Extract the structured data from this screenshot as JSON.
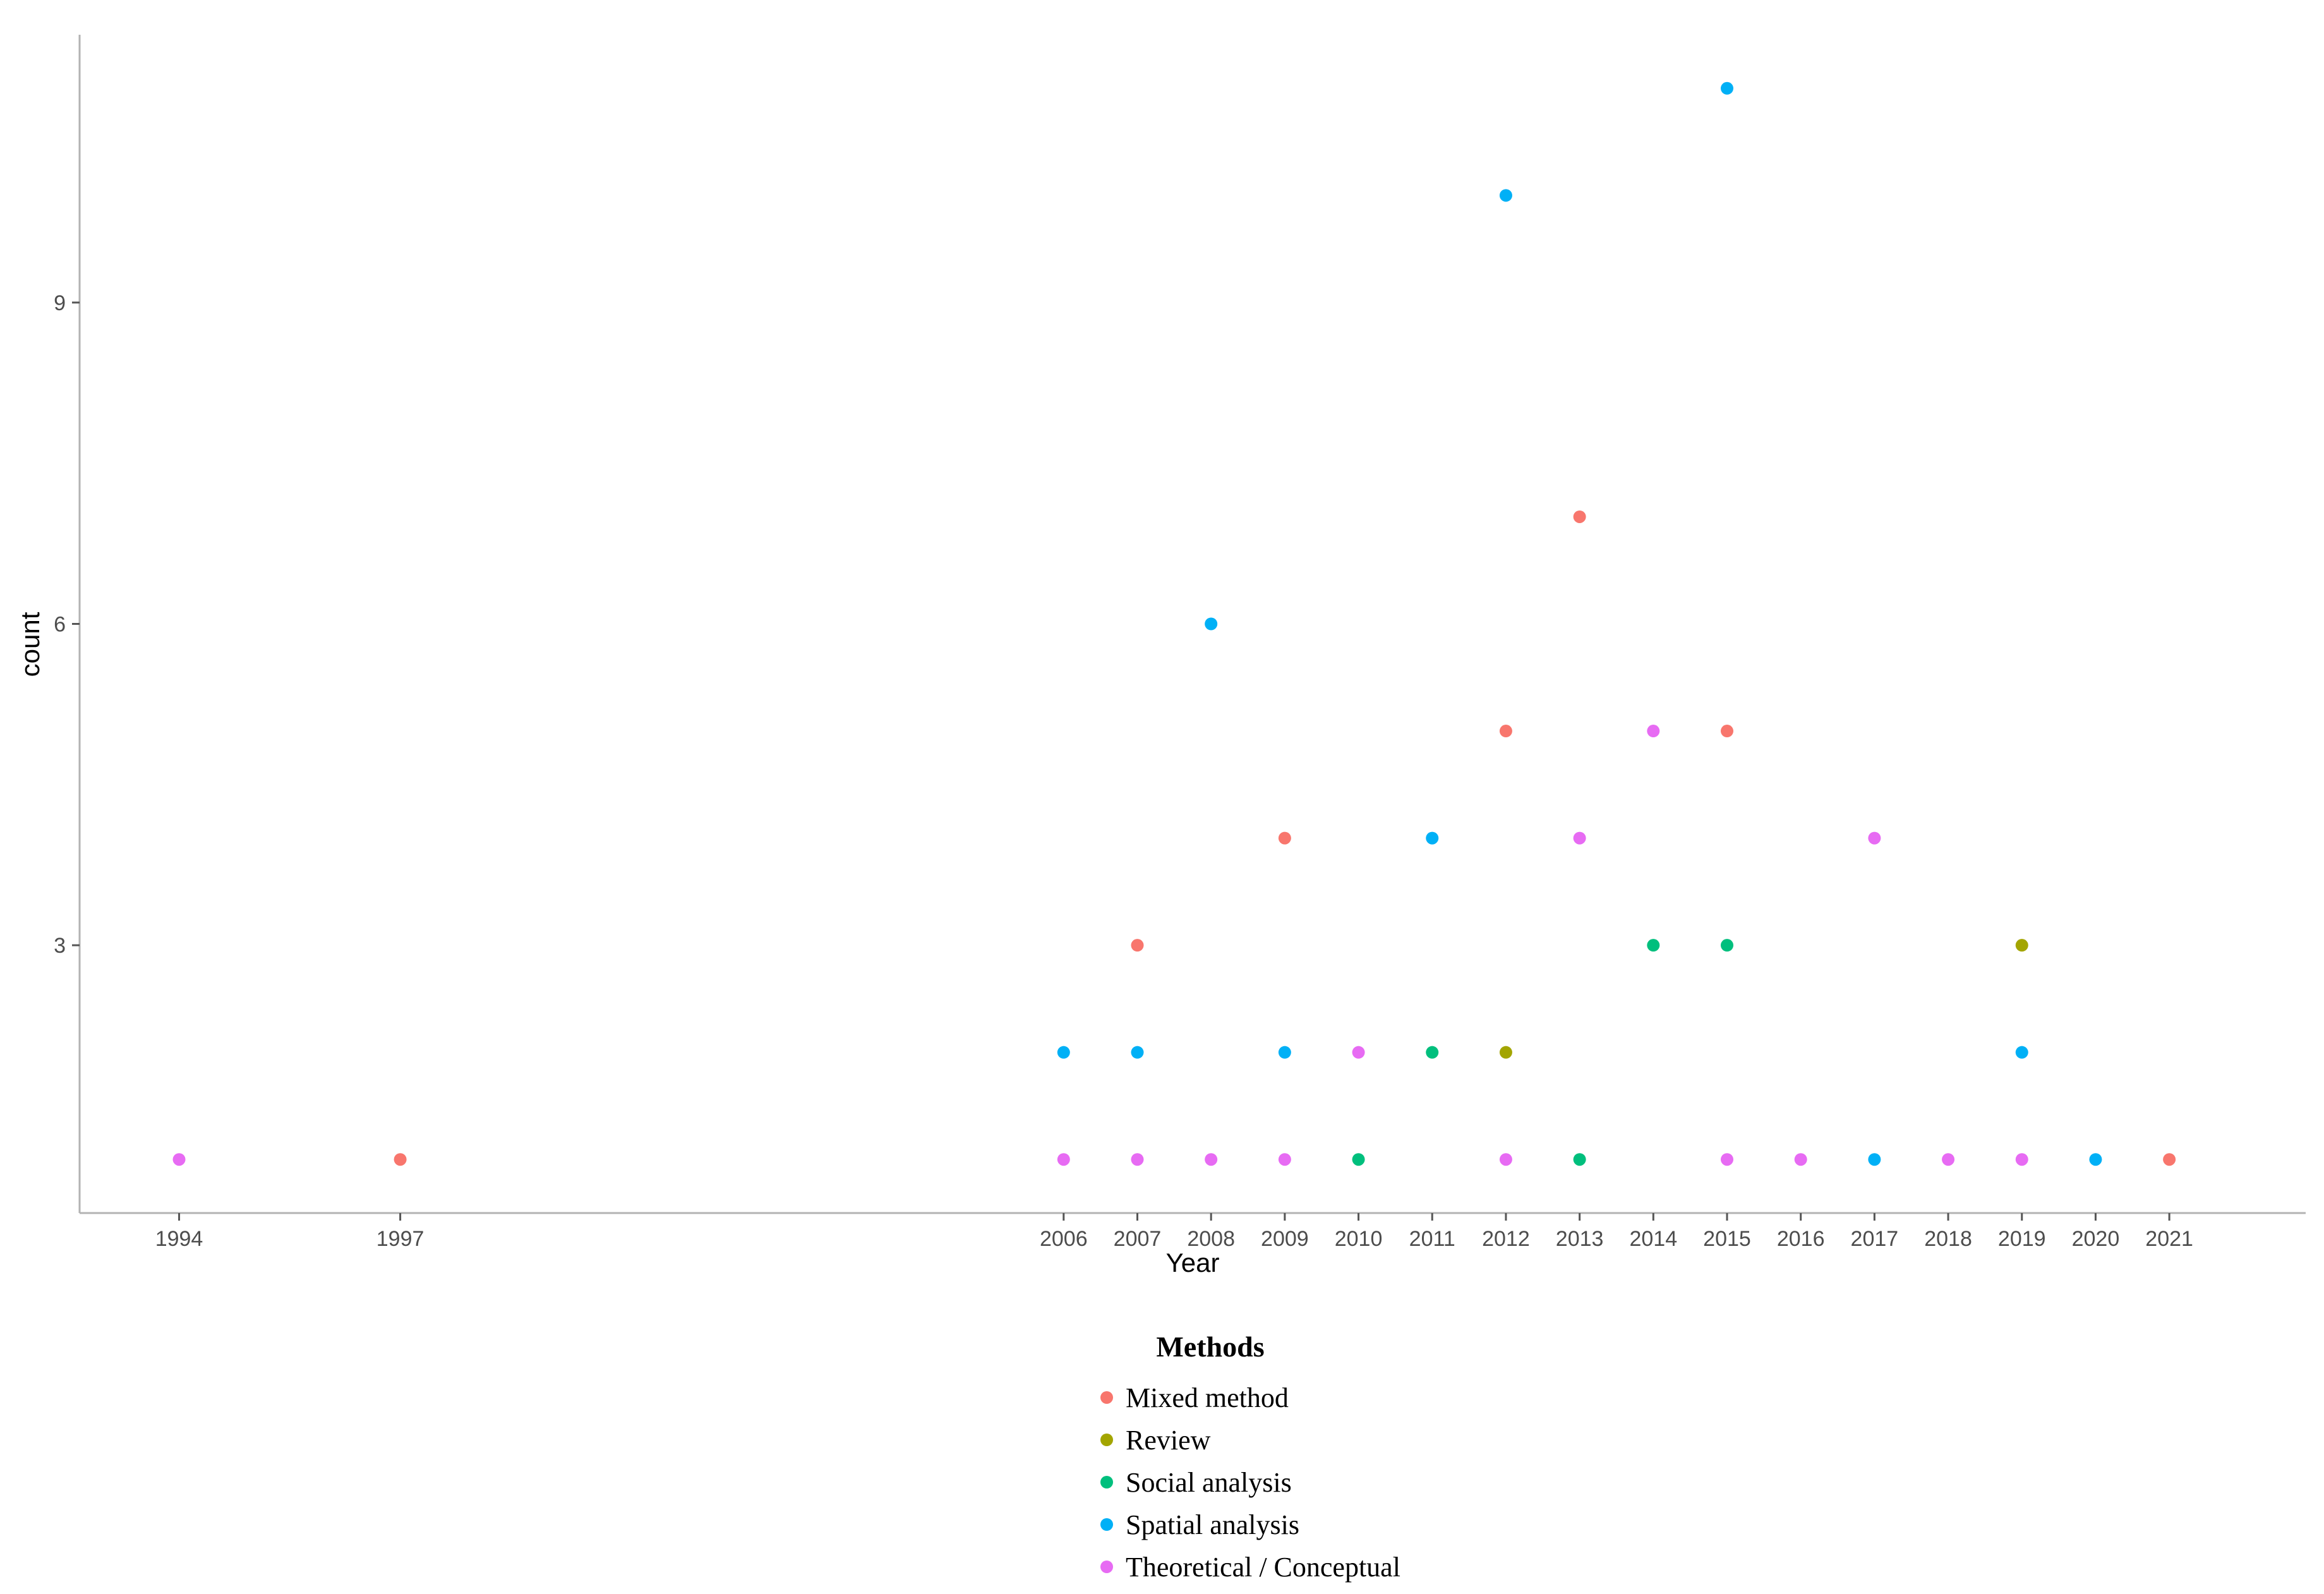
{
  "chart_data": {
    "type": "scatter",
    "xlabel": "Year",
    "ylabel": "count",
    "x_ticks": [
      "1994",
      "1997",
      "2006",
      "2007",
      "2008",
      "2009",
      "2010",
      "2011",
      "2012",
      "2013",
      "2014",
      "2015",
      "2016",
      "2017",
      "2018",
      "2019",
      "2020",
      "2021"
    ],
    "y_ticks": [
      "3",
      "6",
      "9"
    ],
    "xlim": [
      1992.65,
      2022.85
    ],
    "ylim": [
      0.5,
      11.5
    ],
    "grid": false,
    "legend": {
      "title": "Methods",
      "placement": "bottom"
    },
    "series": [
      {
        "name": "Mixed method",
        "color": "#F8766D",
        "points": [
          {
            "x": 1997,
            "y": 1
          },
          {
            "x": 2007,
            "y": 3
          },
          {
            "x": 2009,
            "y": 4
          },
          {
            "x": 2012,
            "y": 5
          },
          {
            "x": 2013,
            "y": 7
          },
          {
            "x": 2015,
            "y": 5
          },
          {
            "x": 2021,
            "y": 1
          }
        ]
      },
      {
        "name": "Review",
        "color": "#A3A500",
        "points": [
          {
            "x": 2012,
            "y": 2
          },
          {
            "x": 2019,
            "y": 3
          }
        ]
      },
      {
        "name": "Social analysis",
        "color": "#00BF7D",
        "points": [
          {
            "x": 2010,
            "y": 1
          },
          {
            "x": 2011,
            "y": 2
          },
          {
            "x": 2013,
            "y": 1
          },
          {
            "x": 2014,
            "y": 3
          },
          {
            "x": 2015,
            "y": 3
          }
        ]
      },
      {
        "name": "Spatial analysis",
        "color": "#00B0F6",
        "points": [
          {
            "x": 2006,
            "y": 2
          },
          {
            "x": 2007,
            "y": 2
          },
          {
            "x": 2008,
            "y": 6
          },
          {
            "x": 2009,
            "y": 2
          },
          {
            "x": 2011,
            "y": 4
          },
          {
            "x": 2012,
            "y": 10
          },
          {
            "x": 2015,
            "y": 11
          },
          {
            "x": 2017,
            "y": 1
          },
          {
            "x": 2019,
            "y": 2
          },
          {
            "x": 2020,
            "y": 1
          }
        ]
      },
      {
        "name": "Theoretical / Conceptual",
        "color": "#E76BF3",
        "points": [
          {
            "x": 1994,
            "y": 1
          },
          {
            "x": 2006,
            "y": 1
          },
          {
            "x": 2007,
            "y": 1
          },
          {
            "x": 2008,
            "y": 1
          },
          {
            "x": 2009,
            "y": 1
          },
          {
            "x": 2010,
            "y": 2
          },
          {
            "x": 2012,
            "y": 1
          },
          {
            "x": 2013,
            "y": 4
          },
          {
            "x": 2014,
            "y": 5
          },
          {
            "x": 2015,
            "y": 1
          },
          {
            "x": 2016,
            "y": 1
          },
          {
            "x": 2017,
            "y": 4
          },
          {
            "x": 2018,
            "y": 1
          },
          {
            "x": 2019,
            "y": 1
          }
        ]
      }
    ]
  }
}
